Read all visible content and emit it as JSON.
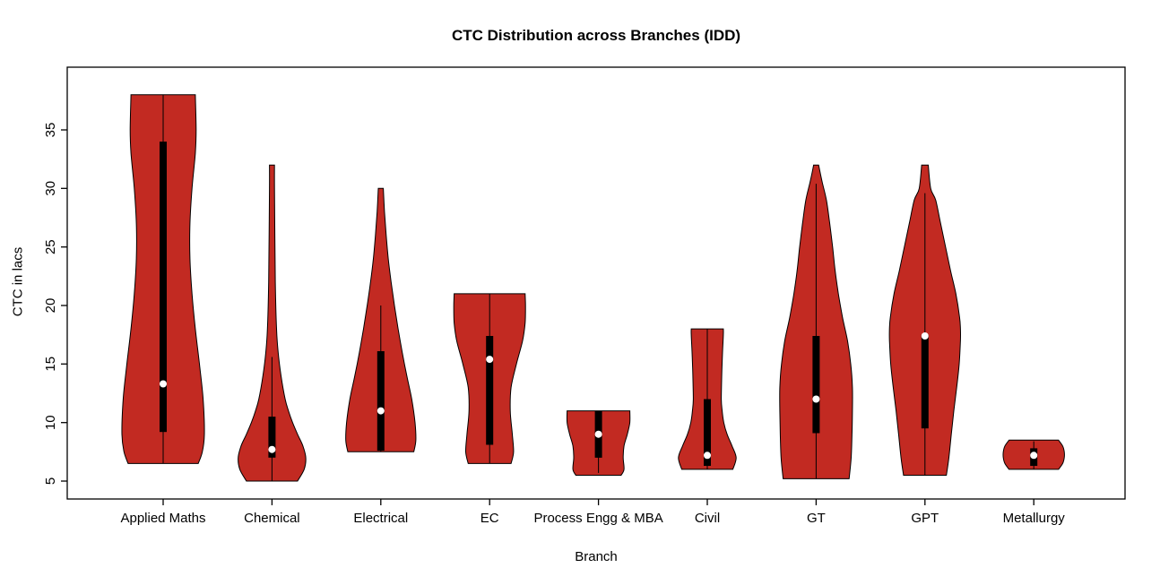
{
  "chart_data": {
    "type": "violin",
    "title": "CTC Distribution across Branches (IDD)",
    "xlabel": "Branch",
    "ylabel": "CTC in lacs",
    "yticks": [
      5,
      10,
      15,
      20,
      25,
      30,
      35
    ],
    "ylim": [
      4,
      39
    ],
    "grid": false,
    "legend": "none",
    "categories": [
      "Applied Maths",
      "Chemical",
      "Electrical",
      "EC",
      "Process Engg & MBA",
      "Civil",
      "GT",
      "GPT",
      "Metallurgy"
    ],
    "violins": [
      {
        "branch": "Applied Maths",
        "range": [
          6.5,
          38
        ],
        "median": 13.3,
        "q1": 9.2,
        "q3": 34,
        "whisker": [
          6.5,
          38
        ],
        "profile": [
          [
            6.5,
            0.85
          ],
          [
            7.5,
            0.95
          ],
          [
            9,
            1.0
          ],
          [
            12,
            0.97
          ],
          [
            15,
            0.88
          ],
          [
            18,
            0.78
          ],
          [
            21,
            0.7
          ],
          [
            24,
            0.65
          ],
          [
            27,
            0.65
          ],
          [
            30,
            0.7
          ],
          [
            33,
            0.78
          ],
          [
            35,
            0.8
          ],
          [
            38,
            0.78
          ]
        ]
      },
      {
        "branch": "Chemical",
        "range": [
          5,
          32
        ],
        "median": 7.7,
        "q1": 7,
        "q3": 10.5,
        "whisker": [
          5,
          15.6
        ],
        "profile": [
          [
            5,
            0.62
          ],
          [
            6,
            0.78
          ],
          [
            7,
            0.82
          ],
          [
            8,
            0.75
          ],
          [
            9,
            0.62
          ],
          [
            10,
            0.5
          ],
          [
            11,
            0.4
          ],
          [
            12,
            0.32
          ],
          [
            14,
            0.22
          ],
          [
            16,
            0.15
          ],
          [
            18,
            0.11
          ],
          [
            22,
            0.08
          ],
          [
            26,
            0.07
          ],
          [
            30,
            0.06
          ],
          [
            32,
            0.06
          ]
        ]
      },
      {
        "branch": "Electrical",
        "range": [
          7.5,
          30
        ],
        "median": 11,
        "q1": 7.6,
        "q3": 16.1,
        "whisker": [
          7.5,
          20
        ],
        "profile": [
          [
            7.5,
            0.8
          ],
          [
            8.5,
            0.85
          ],
          [
            10,
            0.83
          ],
          [
            12,
            0.75
          ],
          [
            14,
            0.63
          ],
          [
            16,
            0.52
          ],
          [
            18,
            0.42
          ],
          [
            20,
            0.33
          ],
          [
            22,
            0.25
          ],
          [
            24,
            0.18
          ],
          [
            26,
            0.13
          ],
          [
            28,
            0.09
          ],
          [
            30,
            0.06
          ]
        ]
      },
      {
        "branch": "EC",
        "range": [
          6.5,
          21
        ],
        "median": 15.4,
        "q1": 8.1,
        "q3": 17.4,
        "whisker": [
          6.5,
          21
        ],
        "profile": [
          [
            6.5,
            0.52
          ],
          [
            7.5,
            0.58
          ],
          [
            9,
            0.55
          ],
          [
            11,
            0.5
          ],
          [
            13,
            0.52
          ],
          [
            15,
            0.65
          ],
          [
            17,
            0.8
          ],
          [
            18.5,
            0.86
          ],
          [
            20,
            0.87
          ],
          [
            21,
            0.86
          ]
        ]
      },
      {
        "branch": "Process Engg & MBA",
        "range": [
          5.5,
          11
        ],
        "median": 9,
        "q1": 7,
        "q3": 11,
        "whisker": [
          5.7,
          11
        ],
        "profile": [
          [
            5.5,
            0.55
          ],
          [
            6,
            0.62
          ],
          [
            7,
            0.6
          ],
          [
            8,
            0.62
          ],
          [
            9,
            0.7
          ],
          [
            10,
            0.76
          ],
          [
            11,
            0.76
          ]
        ]
      },
      {
        "branch": "Civil",
        "range": [
          6,
          18
        ],
        "median": 7.2,
        "q1": 6.3,
        "q3": 12,
        "whisker": [
          6,
          18
        ],
        "profile": [
          [
            6,
            0.62
          ],
          [
            7,
            0.7
          ],
          [
            8,
            0.6
          ],
          [
            9,
            0.48
          ],
          [
            10,
            0.4
          ],
          [
            11,
            0.36
          ],
          [
            12,
            0.34
          ],
          [
            14,
            0.35
          ],
          [
            16,
            0.37
          ],
          [
            17.5,
            0.39
          ],
          [
            18,
            0.39
          ]
        ]
      },
      {
        "branch": "GT",
        "range": [
          5.2,
          32
        ],
        "median": 12,
        "q1": 9.1,
        "q3": 17.4,
        "whisker": [
          5.2,
          30.4
        ],
        "profile": [
          [
            5.2,
            0.8
          ],
          [
            7,
            0.85
          ],
          [
            9,
            0.87
          ],
          [
            11,
            0.88
          ],
          [
            13,
            0.88
          ],
          [
            15,
            0.84
          ],
          [
            17,
            0.76
          ],
          [
            19,
            0.64
          ],
          [
            21,
            0.54
          ],
          [
            23,
            0.46
          ],
          [
            25,
            0.4
          ],
          [
            27,
            0.33
          ],
          [
            29,
            0.25
          ],
          [
            30.5,
            0.15
          ],
          [
            32,
            0.06
          ]
        ]
      },
      {
        "branch": "GPT",
        "range": [
          5.5,
          32
        ],
        "median": 17.4,
        "q1": 9.5,
        "q3": 17.5,
        "whisker": [
          5.5,
          29.6
        ],
        "profile": [
          [
            5.5,
            0.52
          ],
          [
            7,
            0.58
          ],
          [
            9,
            0.64
          ],
          [
            11,
            0.7
          ],
          [
            13,
            0.77
          ],
          [
            15,
            0.83
          ],
          [
            17,
            0.86
          ],
          [
            18,
            0.86
          ],
          [
            19,
            0.84
          ],
          [
            21,
            0.75
          ],
          [
            23,
            0.62
          ],
          [
            25,
            0.5
          ],
          [
            27,
            0.38
          ],
          [
            29,
            0.26
          ],
          [
            30,
            0.14
          ],
          [
            32,
            0.08
          ]
        ]
      },
      {
        "branch": "Metallurgy",
        "range": [
          6,
          8.5
        ],
        "median": 7.2,
        "q1": 6.3,
        "q3": 7.8,
        "whisker": [
          6,
          8.4
        ],
        "profile": [
          [
            6,
            0.6
          ],
          [
            6.5,
            0.7
          ],
          [
            7,
            0.74
          ],
          [
            7.5,
            0.74
          ],
          [
            8,
            0.7
          ],
          [
            8.5,
            0.6
          ]
        ]
      }
    ],
    "colors": {
      "violin_fill": "#C22A22",
      "violin_stroke": "#000000",
      "box": "#000000",
      "median_dot": "#FFFFFF",
      "axis": "#000000",
      "background": "#FFFFFF",
      "text": "#000000"
    }
  }
}
